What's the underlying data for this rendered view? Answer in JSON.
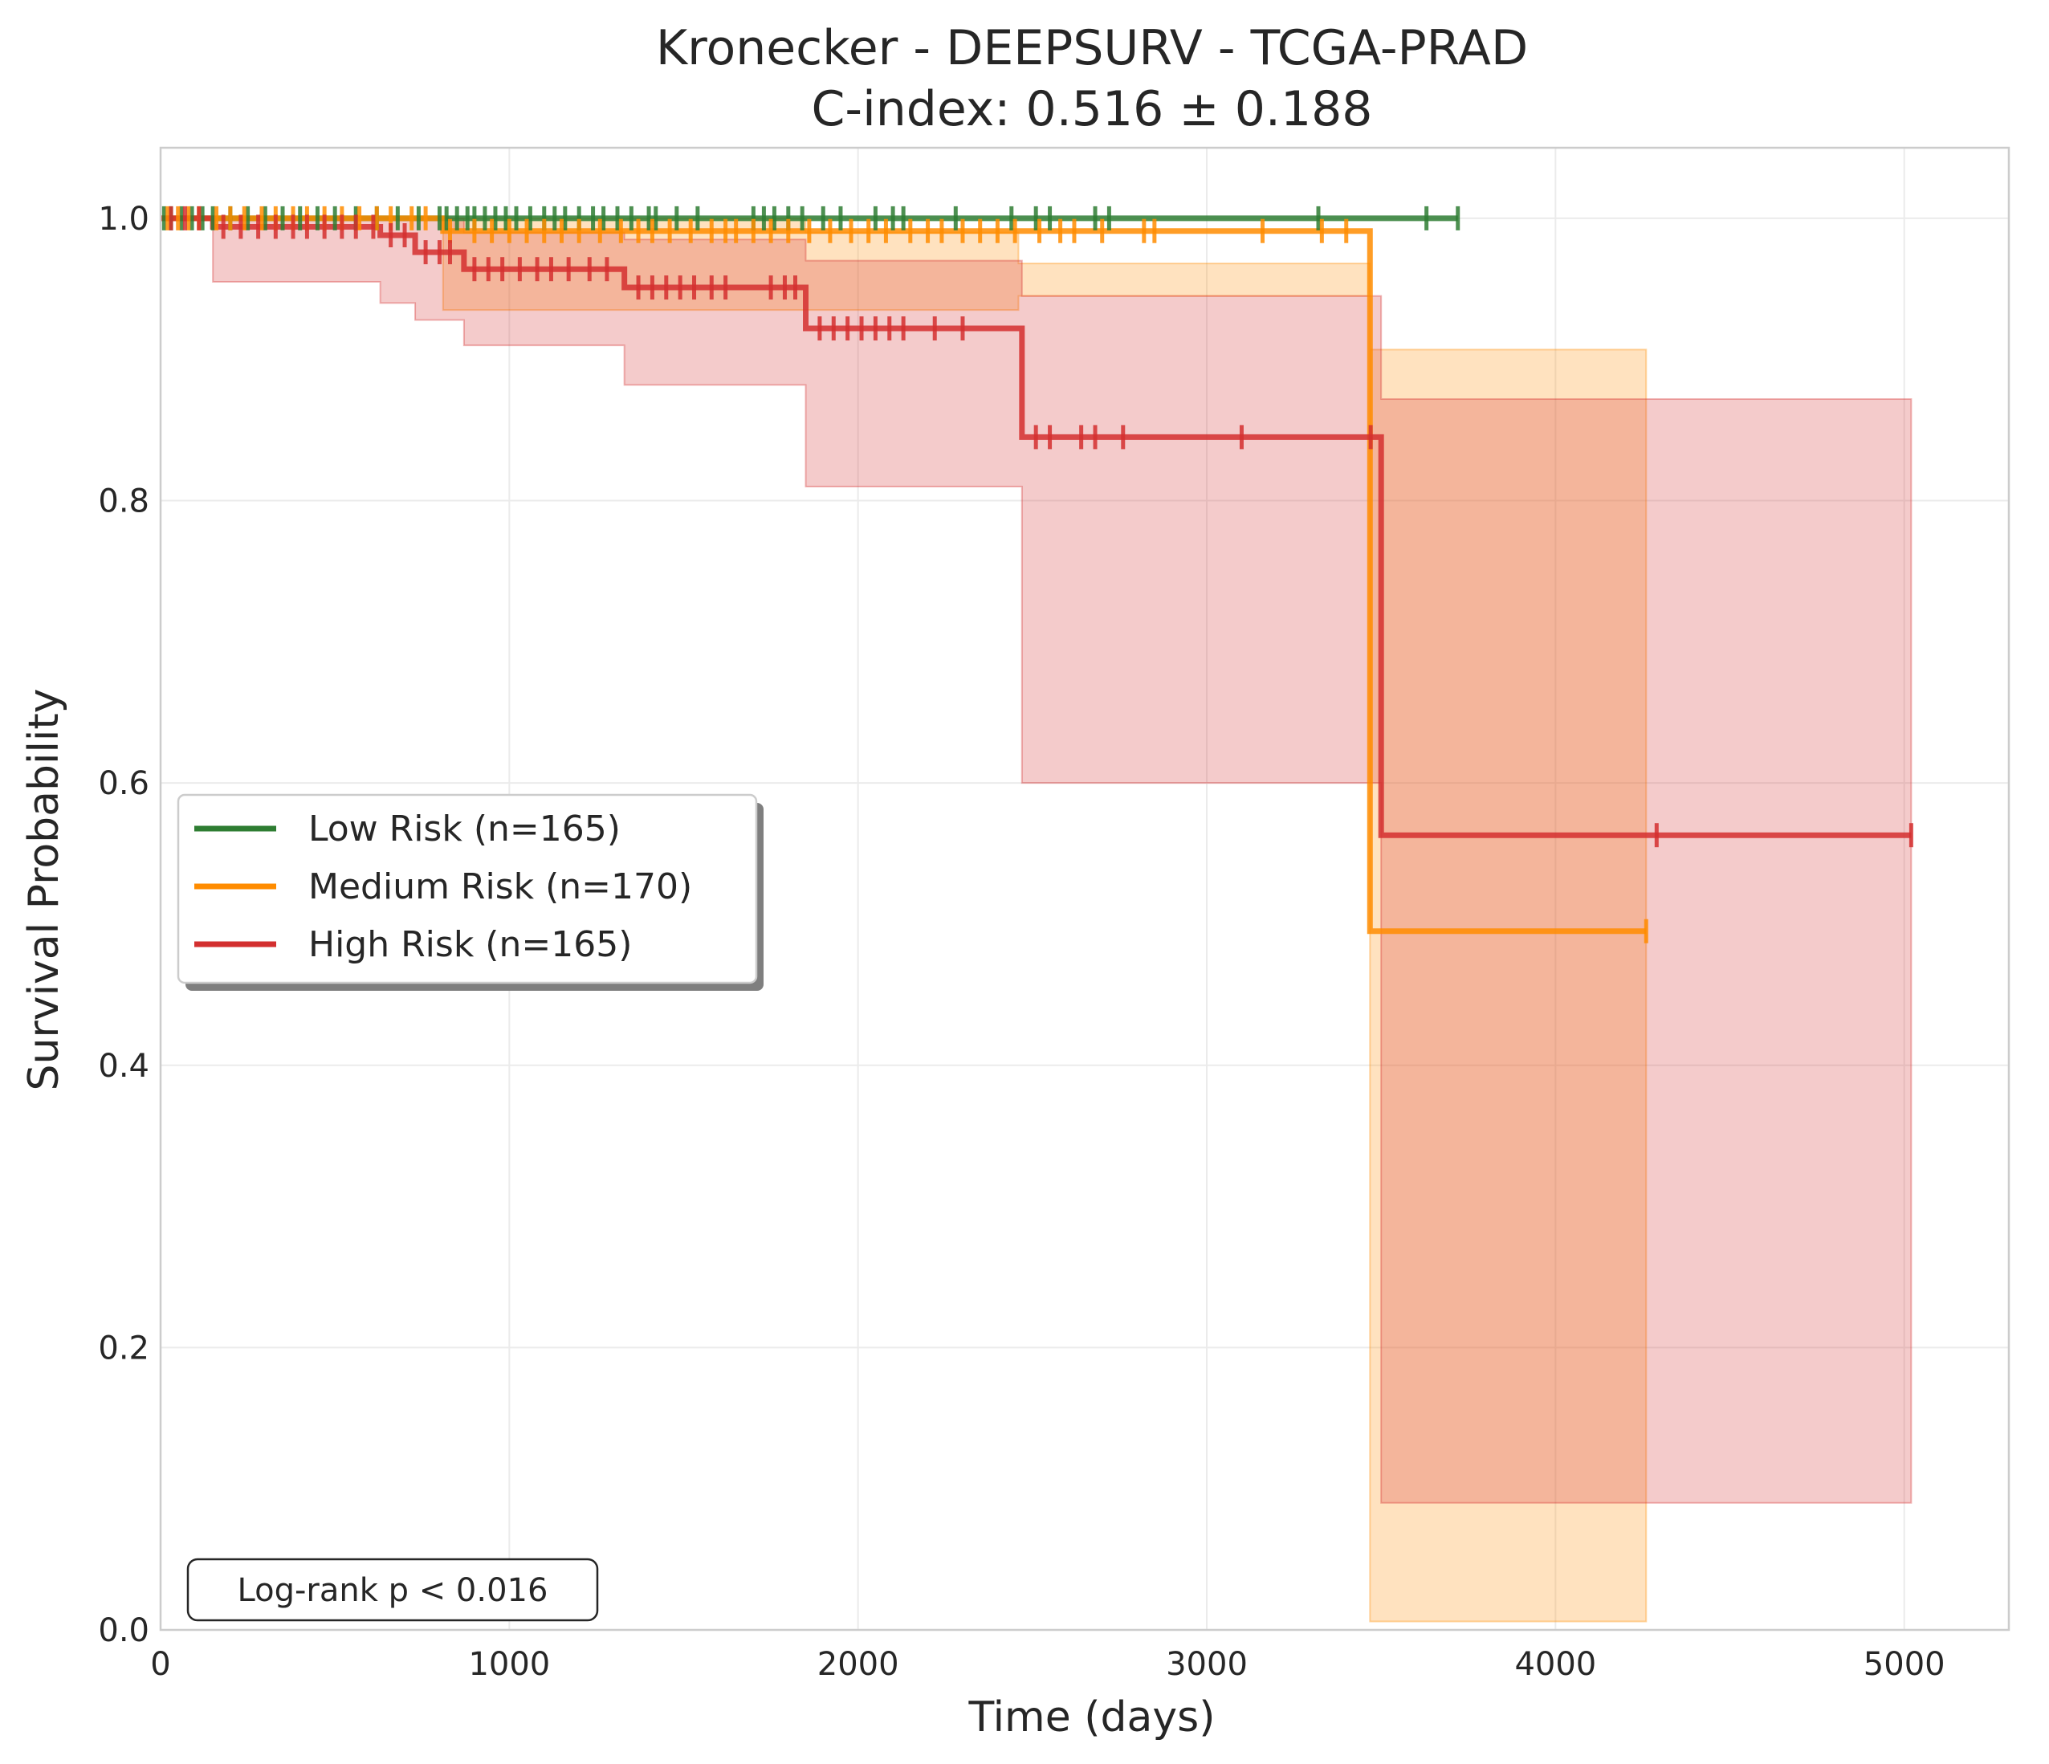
{
  "chart_data": {
    "type": "line",
    "subtype": "kaplan-meier",
    "title": "Kronecker - DEEPSURV - TCGA-PRAD",
    "subtitle": "C-index: 0.516 ± 0.188",
    "xlabel": "Time (days)",
    "ylabel": "Survival Probability",
    "xlim": [
      0,
      5300
    ],
    "ylim": [
      0,
      1.05
    ],
    "xticks": [
      0,
      1000,
      2000,
      3000,
      4000,
      5000
    ],
    "yticks": [
      0.0,
      0.2,
      0.4,
      0.6,
      0.8,
      1.0
    ],
    "xtick_labels": [
      "0",
      "1000",
      "2000",
      "3000",
      "4000",
      "5000"
    ],
    "ytick_labels": [
      "0.0",
      "0.2",
      "0.4",
      "0.6",
      "0.8",
      "1.0"
    ],
    "grid": true,
    "legend_position": "center-left",
    "annotation": "Log-rank p < 0.016",
    "series": [
      {
        "name": "Low Risk (n=165)",
        "color": "#2e7d32",
        "steps": [
          [
            0,
            1.0
          ],
          [
            3720,
            1.0
          ]
        ],
        "ci": [],
        "censor_times": [
          10,
          30,
          60,
          90,
          120,
          150,
          200,
          250,
          300,
          350,
          400,
          450,
          500,
          560,
          620,
          680,
          740,
          800,
          820,
          850,
          880,
          900,
          930,
          960,
          990,
          1020,
          1060,
          1100,
          1130,
          1160,
          1200,
          1240,
          1270,
          1310,
          1350,
          1400,
          1420,
          1480,
          1540,
          1700,
          1730,
          1760,
          1800,
          1840,
          1900,
          1950,
          2050,
          2100,
          2130,
          2280,
          2440,
          2510,
          2550,
          2680,
          2720,
          3320,
          3630,
          3720
        ]
      },
      {
        "name": "Medium Risk (n=170)",
        "color": "#ff8c00",
        "steps": [
          [
            0,
            1.0
          ],
          [
            810,
            0.991
          ],
          [
            3468,
            0.991
          ],
          [
            3468,
            0.495
          ],
          [
            4260,
            0.495
          ]
        ],
        "ci": [
          [
            810,
            1.0,
            0.935
          ],
          [
            1850,
            0.99,
            0.935
          ],
          [
            2460,
            0.968,
            0.945
          ],
          [
            3468,
            0.968,
            0.935
          ],
          [
            3468,
            0.907,
            0.006
          ],
          [
            4260,
            0.907,
            0.006
          ]
        ],
        "censor_times": [
          20,
          50,
          80,
          110,
          160,
          200,
          240,
          290,
          330,
          380,
          420,
          470,
          520,
          570,
          620,
          660,
          720,
          760,
          830,
          900,
          950,
          1000,
          1050,
          1100,
          1150,
          1200,
          1260,
          1320,
          1370,
          1410,
          1460,
          1520,
          1580,
          1620,
          1650,
          1700,
          1750,
          1800,
          1860,
          1920,
          1980,
          2030,
          2080,
          2150,
          2200,
          2240,
          2300,
          2350,
          2400,
          2450,
          2520,
          2580,
          2620,
          2700,
          2820,
          2850,
          3160,
          3330,
          3400,
          4260
        ]
      },
      {
        "name": "High Risk (n=165)",
        "color": "#d32f2f",
        "steps": [
          [
            0,
            1.0
          ],
          [
            150,
            0.994
          ],
          [
            630,
            0.994
          ],
          [
            630,
            0.988
          ],
          [
            730,
            0.988
          ],
          [
            730,
            0.976
          ],
          [
            870,
            0.976
          ],
          [
            870,
            0.964
          ],
          [
            1330,
            0.964
          ],
          [
            1330,
            0.951
          ],
          [
            1850,
            0.951
          ],
          [
            1850,
            0.922
          ],
          [
            2470,
            0.922
          ],
          [
            2470,
            0.845
          ],
          [
            3500,
            0.845
          ],
          [
            3500,
            0.563
          ],
          [
            5020,
            0.563
          ]
        ],
        "ci": [
          [
            150,
            1.0,
            0.955
          ],
          [
            630,
            1.0,
            0.94
          ],
          [
            730,
            1.0,
            0.928
          ],
          [
            870,
            0.99,
            0.91
          ],
          [
            1330,
            0.985,
            0.882
          ],
          [
            1850,
            0.97,
            0.81
          ],
          [
            2470,
            0.945,
            0.6
          ],
          [
            3500,
            0.872,
            0.09
          ],
          [
            5020,
            0.872,
            0.09
          ]
        ],
        "censor_times": [
          30,
          70,
          110,
          180,
          230,
          280,
          330,
          380,
          420,
          470,
          520,
          560,
          610,
          660,
          700,
          760,
          800,
          830,
          900,
          940,
          980,
          1030,
          1080,
          1120,
          1170,
          1230,
          1280,
          1370,
          1410,
          1450,
          1490,
          1530,
          1580,
          1620,
          1750,
          1790,
          1820,
          1890,
          1930,
          1970,
          2010,
          2050,
          2090,
          2130,
          2220,
          2300,
          2510,
          2550,
          2640,
          2680,
          2760,
          3100,
          3470,
          4290,
          5020
        ]
      }
    ]
  }
}
